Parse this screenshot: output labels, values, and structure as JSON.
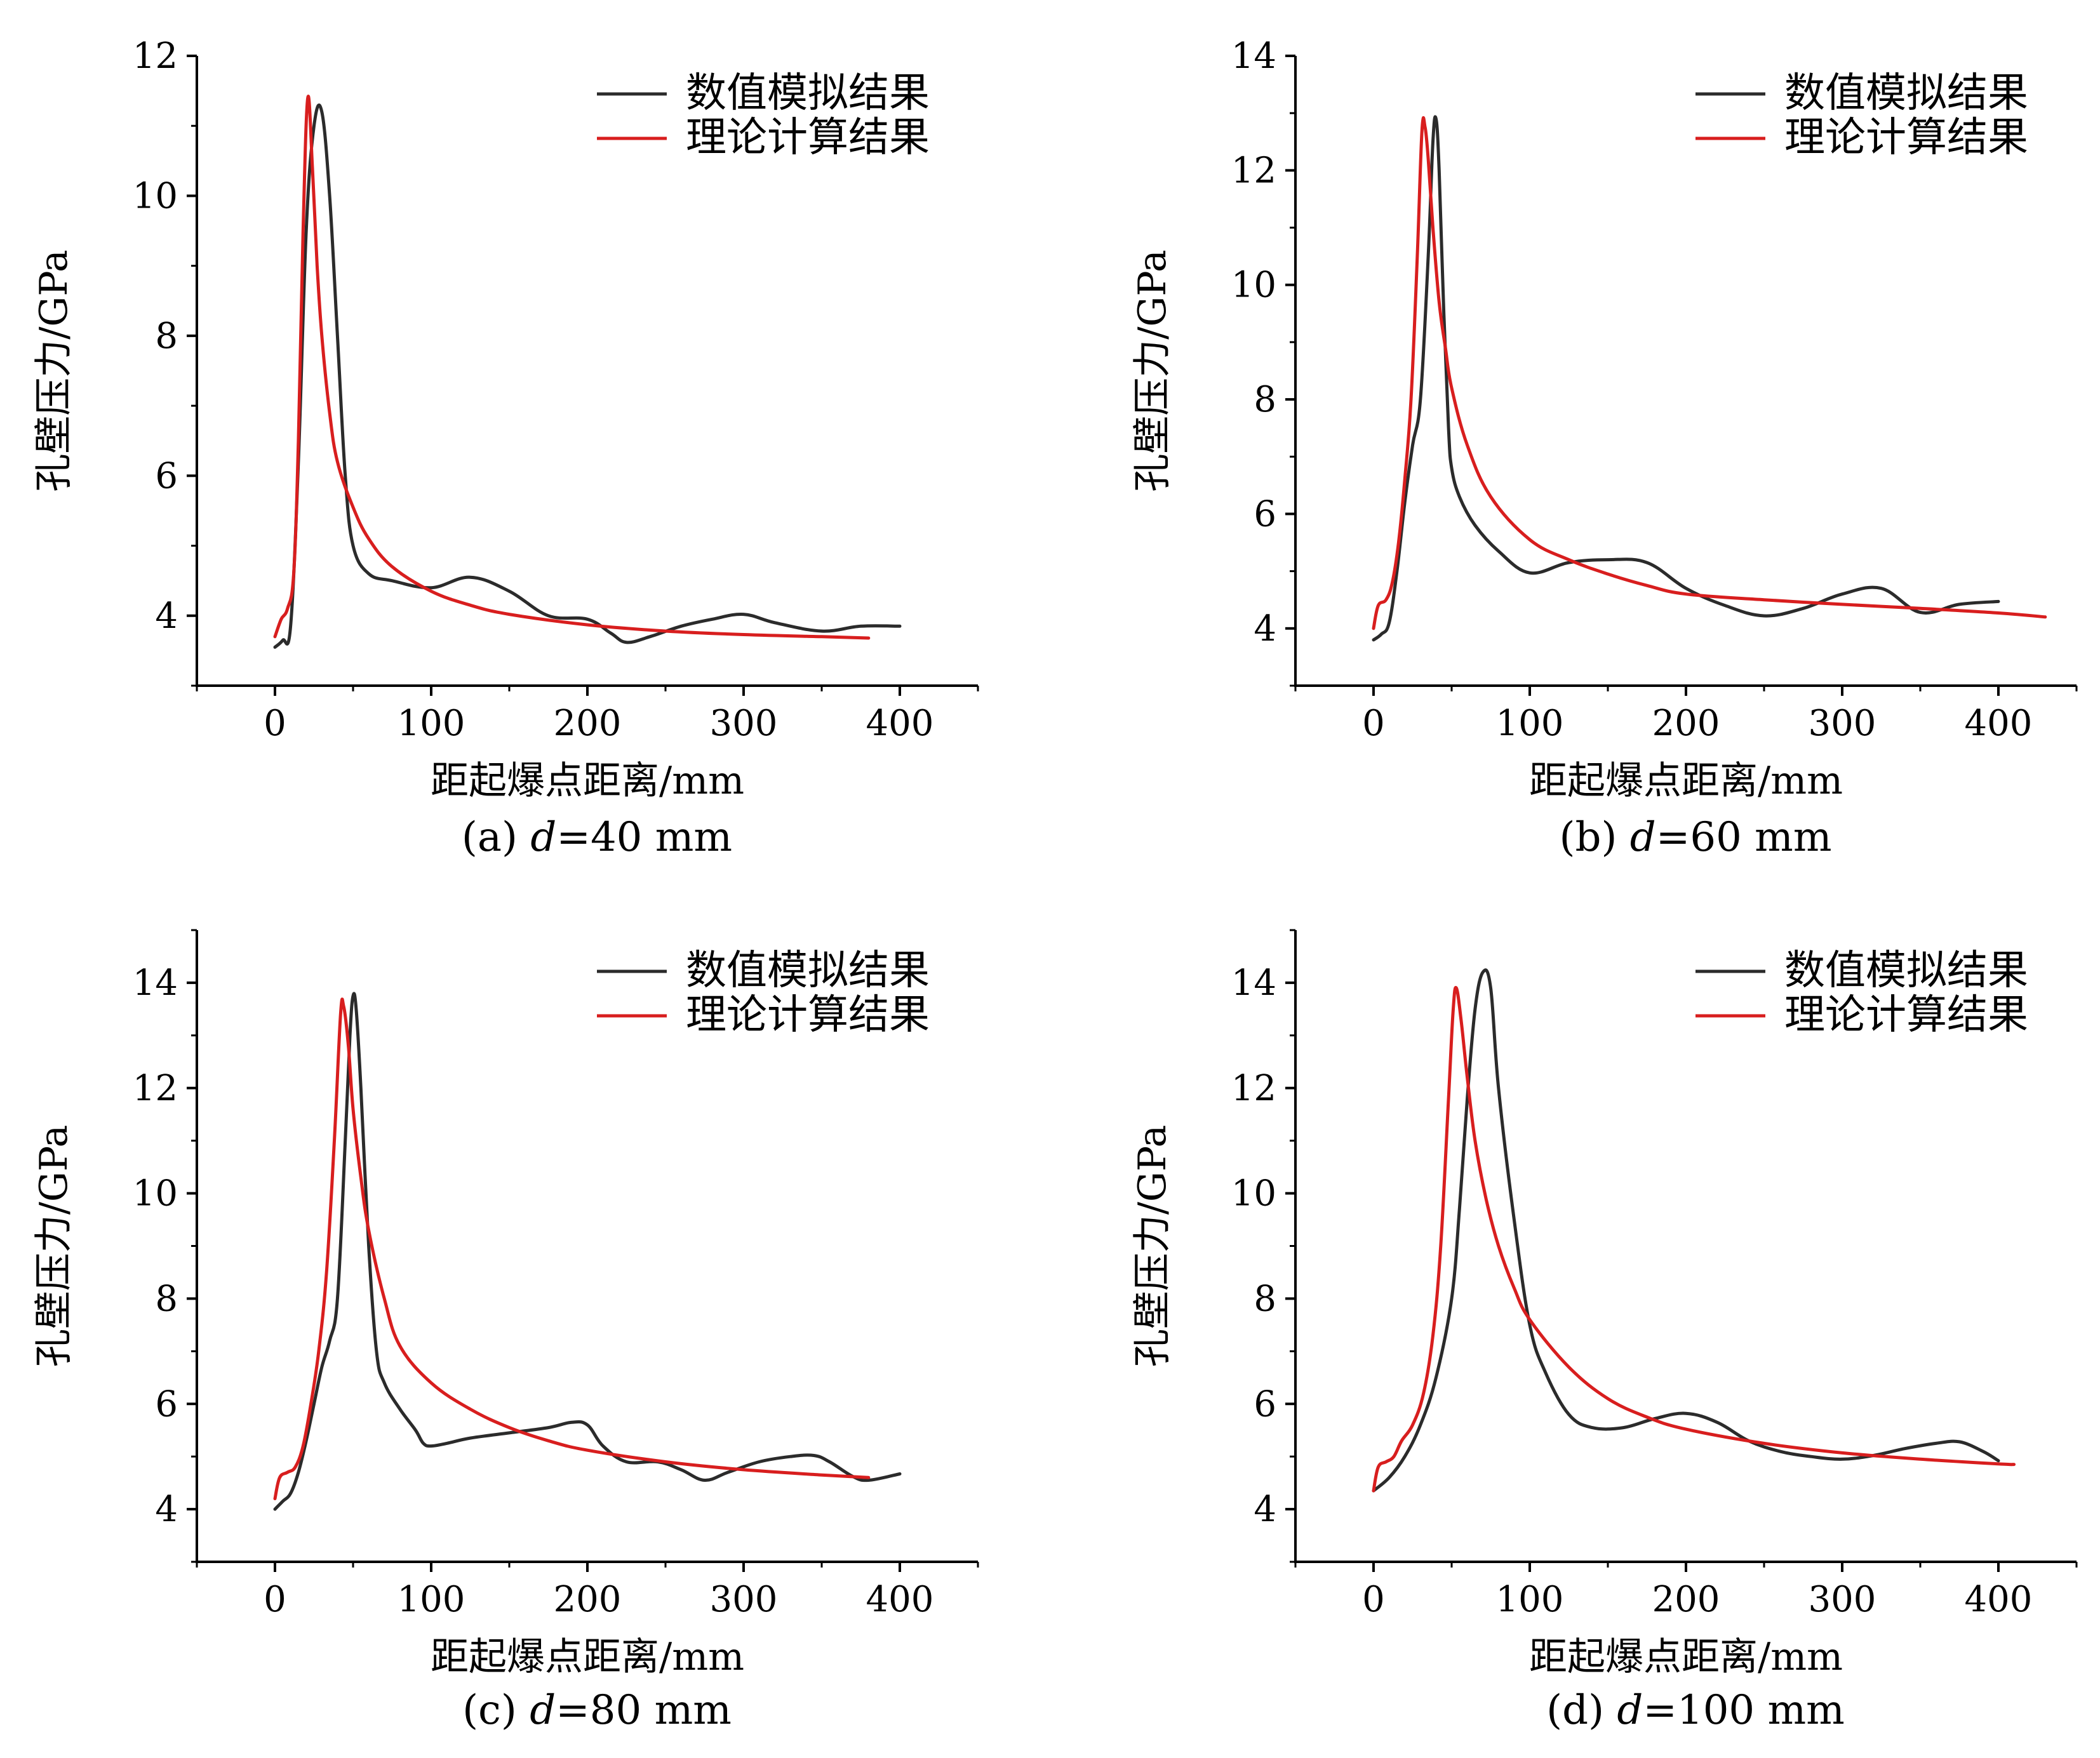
{
  "chart_data": [
    {
      "type": "line",
      "caption": "(a) d=40 mm",
      "caption_prefix": "(a) ",
      "caption_var": "d",
      "caption_suffix": "=40 mm",
      "xlabel": "距起爆点距离/mm",
      "ylabel": "孔壁压力/GPa",
      "xlim": [
        -50,
        450
      ],
      "ylim": [
        3,
        12
      ],
      "xticks": [
        0,
        100,
        200,
        300,
        400
      ],
      "yticks": [
        4,
        6,
        8,
        10,
        12
      ],
      "legend_position": "top-right",
      "series": [
        {
          "name": "数值模拟结果",
          "color": "#2b2b2b",
          "x": [
            0,
            5,
            10,
            15,
            20,
            25,
            30,
            35,
            40,
            45,
            50,
            60,
            75,
            100,
            125,
            150,
            175,
            200,
            215,
            225,
            240,
            260,
            280,
            300,
            320,
            350,
            375,
            400
          ],
          "y": [
            3.55,
            3.65,
            3.85,
            6.2,
            9.5,
            11.0,
            11.2,
            10.0,
            8.0,
            6.0,
            5.0,
            4.6,
            4.5,
            4.4,
            4.55,
            4.35,
            4.0,
            3.95,
            3.75,
            3.62,
            3.7,
            3.85,
            3.95,
            4.02,
            3.9,
            3.78,
            3.85,
            3.85
          ]
        },
        {
          "name": "理论计算结果",
          "color": "#d81e1e",
          "x": [
            0,
            4,
            8,
            12,
            15,
            18,
            21,
            24,
            27,
            30,
            35,
            40,
            50,
            60,
            75,
            100,
            125,
            150,
            200,
            250,
            300,
            350,
            380
          ],
          "y": [
            3.7,
            3.95,
            4.1,
            4.6,
            6.5,
            9.5,
            11.4,
            10.4,
            9.0,
            8.0,
            6.9,
            6.2,
            5.55,
            5.1,
            4.7,
            4.35,
            4.15,
            4.02,
            3.87,
            3.78,
            3.73,
            3.7,
            3.68
          ]
        }
      ]
    },
    {
      "type": "line",
      "caption": "(b) d=60 mm",
      "caption_prefix": "(b) ",
      "caption_var": "d",
      "caption_suffix": "=60 mm",
      "xlabel": "距起爆点距离/mm",
      "ylabel": "孔壁压力/GPa",
      "xlim": [
        -50,
        450
      ],
      "ylim": [
        3,
        14
      ],
      "xticks": [
        0,
        100,
        200,
        300,
        400
      ],
      "yticks": [
        4,
        6,
        8,
        10,
        12,
        14
      ],
      "legend_position": "top-right",
      "series": [
        {
          "name": "数值模拟结果",
          "color": "#2b2b2b",
          "x": [
            0,
            5,
            10,
            15,
            20,
            25,
            30,
            35,
            38,
            40,
            42,
            45,
            48,
            50,
            55,
            65,
            80,
            100,
            125,
            150,
            175,
            200,
            225,
            250,
            275,
            300,
            325,
            350,
            375,
            400
          ],
          "y": [
            3.8,
            3.9,
            4.1,
            5.0,
            6.2,
            7.2,
            8.0,
            10.5,
            12.5,
            12.9,
            12.0,
            9.5,
            7.5,
            6.8,
            6.3,
            5.8,
            5.35,
            4.97,
            5.15,
            5.2,
            5.15,
            4.7,
            4.4,
            4.22,
            4.35,
            4.6,
            4.7,
            4.28,
            4.42,
            4.47
          ]
        },
        {
          "name": "理论计算结果",
          "color": "#d81e1e",
          "x": [
            0,
            3,
            8,
            12,
            16,
            20,
            24,
            28,
            31,
            33,
            35,
            38,
            42,
            46,
            50,
            60,
            75,
            100,
            125,
            150,
            175,
            200,
            250,
            300,
            350,
            400,
            430
          ],
          "y": [
            4.0,
            4.4,
            4.5,
            4.8,
            5.5,
            6.6,
            8.0,
            10.5,
            12.7,
            12.75,
            12.2,
            11.0,
            9.7,
            8.9,
            8.2,
            7.2,
            6.3,
            5.55,
            5.2,
            4.95,
            4.75,
            4.6,
            4.5,
            4.42,
            4.35,
            4.27,
            4.2
          ]
        }
      ]
    },
    {
      "type": "line",
      "caption": "(c) d=80 mm",
      "caption_prefix": "(c) ",
      "caption_var": "d",
      "caption_suffix": "=80 mm",
      "xlabel": "距起爆点距离/mm",
      "ylabel": "孔壁压力/GPa",
      "xlim": [
        -50,
        450
      ],
      "ylim": [
        3,
        15
      ],
      "xticks": [
        0,
        100,
        200,
        300,
        400
      ],
      "yticks": [
        4,
        6,
        8,
        10,
        12,
        14
      ],
      "legend_position": "top-right",
      "series": [
        {
          "name": "数值模拟结果",
          "color": "#2b2b2b",
          "x": [
            0,
            5,
            10,
            15,
            20,
            25,
            30,
            35,
            40,
            45,
            48,
            50,
            52,
            55,
            60,
            65,
            70,
            80,
            90,
            95,
            100,
            110,
            125,
            150,
            175,
            190,
            200,
            210,
            225,
            245,
            260,
            275,
            290,
            310,
            330,
            345,
            355,
            370,
            380,
            400
          ],
          "y": [
            4.0,
            4.15,
            4.3,
            4.7,
            5.3,
            6.0,
            6.7,
            7.2,
            8.0,
            11.0,
            13.0,
            13.75,
            13.5,
            12.0,
            9.0,
            7.0,
            6.4,
            5.9,
            5.5,
            5.25,
            5.2,
            5.25,
            5.35,
            5.45,
            5.55,
            5.65,
            5.6,
            5.2,
            4.9,
            4.9,
            4.75,
            4.55,
            4.7,
            4.9,
            5.0,
            5.02,
            4.9,
            4.62,
            4.55,
            4.67
          ]
        },
        {
          "name": "理论计算结果",
          "color": "#d81e1e",
          "x": [
            0,
            3,
            8,
            13,
            18,
            23,
            28,
            33,
            38,
            42,
            44,
            47,
            50,
            55,
            60,
            70,
            80,
            100,
            125,
            150,
            175,
            200,
            250,
            300,
            350,
            380
          ],
          "y": [
            4.2,
            4.6,
            4.7,
            4.8,
            5.2,
            6.0,
            7.0,
            8.5,
            11.0,
            13.4,
            13.55,
            12.8,
            11.6,
            10.3,
            9.3,
            8.0,
            7.1,
            6.4,
            5.9,
            5.55,
            5.3,
            5.12,
            4.9,
            4.75,
            4.65,
            4.6
          ]
        }
      ]
    },
    {
      "type": "line",
      "caption": "(d) d=100 mm",
      "caption_prefix": "(d) ",
      "caption_var": "d",
      "caption_suffix": "=100 mm",
      "xlabel": "距起爆点距离/mm",
      "ylabel": "孔壁压力/GPa",
      "xlim": [
        -50,
        450
      ],
      "ylim": [
        3,
        15
      ],
      "xticks": [
        0,
        100,
        200,
        300,
        400
      ],
      "yticks": [
        4,
        6,
        8,
        10,
        12,
        14
      ],
      "legend_position": "top-right",
      "series": [
        {
          "name": "数值模拟结果",
          "color": "#2b2b2b",
          "x": [
            0,
            10,
            20,
            30,
            40,
            50,
            55,
            60,
            65,
            70,
            75,
            80,
            90,
            100,
            110,
            125,
            140,
            160,
            180,
            200,
            220,
            240,
            260,
            280,
            300,
            320,
            340,
            360,
            375,
            390,
            400
          ],
          "y": [
            4.35,
            4.6,
            5.0,
            5.6,
            6.5,
            8.0,
            9.7,
            11.8,
            13.5,
            14.2,
            13.9,
            12.0,
            9.5,
            7.5,
            6.6,
            5.8,
            5.55,
            5.55,
            5.72,
            5.82,
            5.65,
            5.3,
            5.1,
            5.0,
            4.95,
            5.02,
            5.15,
            5.25,
            5.28,
            5.1,
            4.92
          ]
        },
        {
          "name": "理论计算结果",
          "color": "#d81e1e",
          "x": [
            0,
            3,
            8,
            13,
            18,
            25,
            32,
            38,
            43,
            48,
            51,
            53,
            56,
            60,
            65,
            72,
            80,
            90,
            100,
            125,
            150,
            175,
            200,
            250,
            300,
            350,
            400,
            410
          ],
          "y": [
            4.35,
            4.8,
            4.9,
            5.0,
            5.3,
            5.6,
            6.2,
            7.3,
            9.0,
            11.8,
            13.5,
            13.9,
            13.3,
            12.2,
            11.0,
            9.9,
            9.0,
            8.2,
            7.6,
            6.7,
            6.1,
            5.75,
            5.52,
            5.25,
            5.07,
            4.95,
            4.86,
            4.85
          ]
        }
      ]
    }
  ]
}
